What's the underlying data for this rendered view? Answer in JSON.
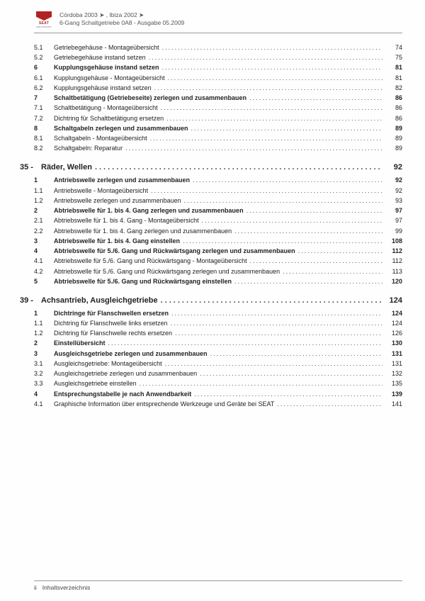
{
  "header": {
    "brand": "SEAT",
    "brand_sub": "auto emoción",
    "line1": "Córdoba 2003 ➤ , Ibiza 2002 ➤",
    "line2": "6-Gang Schaltgetriebe 0A8 - Ausgabe 05.2009"
  },
  "toc_blocks": [
    {
      "rows": [
        {
          "num": "5.1",
          "text": "Getriebegehäuse - Montageübersicht",
          "page": "74",
          "bold": false
        },
        {
          "num": "5.2",
          "text": "Getriebegehäuse instand setzen",
          "page": "75",
          "bold": false
        },
        {
          "num": "6",
          "text": "Kupplungsgehäuse instand setzen",
          "page": "81",
          "bold": true
        },
        {
          "num": "6.1",
          "text": "Kupplungsgehäuse - Montageübersicht",
          "page": "81",
          "bold": false
        },
        {
          "num": "6.2",
          "text": "Kupplungsgehäuse instand setzen",
          "page": "82",
          "bold": false
        },
        {
          "num": "7",
          "text": "Schaltbetätigung (Getriebeseite) zerlegen und zusammenbauen",
          "page": "86",
          "bold": true
        },
        {
          "num": "7.1",
          "text": "Schaltbetätigung - Montageübersicht",
          "page": "86",
          "bold": false
        },
        {
          "num": "7.2",
          "text": "Dichtring für Schaltbetätigung ersetzen",
          "page": "86",
          "bold": false
        },
        {
          "num": "8",
          "text": "Schaltgabeln zerlegen und zusammenbauen",
          "page": "89",
          "bold": true
        },
        {
          "num": "8.1",
          "text": "Schaltgabeln - Montageübersicht",
          "page": "89",
          "bold": false
        },
        {
          "num": "8.2",
          "text": "Schaltgabeln: Reparatur",
          "page": "89",
          "bold": false
        }
      ]
    },
    {
      "heading": {
        "num": "35 -",
        "title": "Räder, Wellen",
        "page": "92"
      },
      "rows": [
        {
          "num": "1",
          "text": "Antriebswelle zerlegen und zusammenbauen",
          "page": "92",
          "bold": true
        },
        {
          "num": "1.1",
          "text": "Antriebswelle - Montageübersicht",
          "page": "92",
          "bold": false
        },
        {
          "num": "1.2",
          "text": "Antriebswelle zerlegen und zusammenbauen",
          "page": "93",
          "bold": false
        },
        {
          "num": "2",
          "text": "Abtriebswelle für 1. bis 4. Gang zerlegen und zusammenbauen",
          "page": "97",
          "bold": true
        },
        {
          "num": "2.1",
          "text": "Abtriebswelle für 1. bis 4. Gang - Montageübersicht",
          "page": "97",
          "bold": false
        },
        {
          "num": "2.2",
          "text": "Abtriebswelle für 1. bis 4. Gang zerlegen und zusammenbauen",
          "page": "99",
          "bold": false
        },
        {
          "num": "3",
          "text": "Abtriebswelle für 1. bis 4. Gang einstellen",
          "page": "108",
          "bold": true
        },
        {
          "num": "4",
          "text": "Abtriebswelle für 5./6. Gang und Rückwärtsgang zerlegen und zusammenbauen",
          "page": "112",
          "bold": true
        },
        {
          "num": "4.1",
          "text": "Abtriebswelle für 5./6. Gang und Rückwärtsgang - Montageübersicht",
          "page": "112",
          "bold": false
        },
        {
          "num": "4.2",
          "text": "Abtriebswelle für 5./6. Gang und Rückwärtsgang zerlegen und zusammenbauen",
          "page": "113",
          "bold": false
        },
        {
          "num": "5",
          "text": "Abtriebswelle für 5./6. Gang und Rückwärtsgang einstellen",
          "page": "120",
          "bold": true
        }
      ]
    },
    {
      "heading": {
        "num": "39 -",
        "title": "Achsantrieb, Ausgleichgetriebe",
        "page": "124"
      },
      "rows": [
        {
          "num": "1",
          "text": "Dichtringe für Flanschwellen ersetzen",
          "page": "124",
          "bold": true
        },
        {
          "num": "1.1",
          "text": "Dichtring für Flanschwelle links ersetzen",
          "page": "124",
          "bold": false
        },
        {
          "num": "1.2",
          "text": "Dichtring für Flanschwelle rechts ersetzen",
          "page": "126",
          "bold": false
        },
        {
          "num": "2",
          "text": "Einstellübersicht",
          "page": "130",
          "bold": true
        },
        {
          "num": "3",
          "text": "Ausgleichsgetriebe zerlegen und zusammenbauen",
          "page": "131",
          "bold": true
        },
        {
          "num": "3.1",
          "text": "Ausgleichsgetriebe: Montageübersicht",
          "page": "131",
          "bold": false
        },
        {
          "num": "3.2",
          "text": "Ausgleichsgetriebe zerlegen und zusammenbauen",
          "page": "132",
          "bold": false
        },
        {
          "num": "3.3",
          "text": "Ausgleichsgetriebe einstellen",
          "page": "135",
          "bold": false
        },
        {
          "num": "4",
          "text": "Entsprechungstabelle je nach Anwendbarkeit",
          "page": "139",
          "bold": true
        },
        {
          "num": "4.1",
          "text": "Graphische Information über entsprechende Werkzeuge und Geräte bei SEAT",
          "page": "141",
          "bold": false
        }
      ]
    }
  ],
  "footer": {
    "page_num": "ii",
    "label": "Inhaltsverzeichnis"
  }
}
